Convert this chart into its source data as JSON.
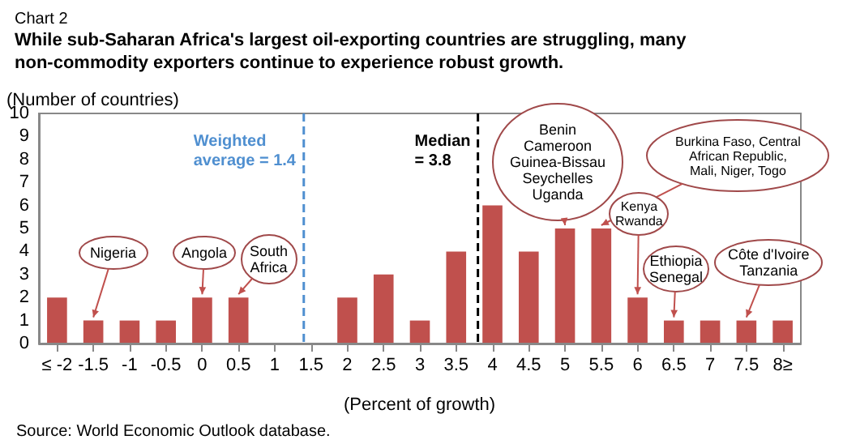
{
  "chart_data": {
    "type": "bar",
    "title": "Chart 2",
    "subtitle": "While sub-Saharan Africa's largest oil-exporting countries are struggling, many non-commodity exporters continue to experience robust growth.",
    "ylabel": "(Number of countries)",
    "xlabel": "(Percent of growth)",
    "x": [
      -2,
      -1.5,
      -1,
      -0.5,
      0,
      0.5,
      1,
      1.5,
      2,
      2.5,
      3,
      3.5,
      4,
      4.5,
      5,
      5.5,
      6,
      6.5,
      7,
      7.5,
      8
    ],
    "values": [
      2,
      1,
      1,
      1,
      2,
      2,
      0,
      0,
      2,
      3,
      1,
      4,
      6,
      4,
      5,
      5,
      2,
      1,
      1,
      1,
      1
    ],
    "color": "#c0504d",
    "xlim": [
      -2.25,
      8.25
    ],
    "xticks": [
      {
        "value": -2,
        "label": "≤ -2"
      },
      -1.5,
      -1,
      -0.5,
      0,
      0.5,
      1,
      1.5,
      2,
      2.5,
      3,
      3.5,
      4,
      4.5,
      5,
      5.5,
      6,
      6.5,
      7,
      7.5,
      {
        "value": 8,
        "label": "8≥"
      }
    ],
    "ylim": [
      0,
      10
    ],
    "yticks": [
      0,
      1,
      2,
      3,
      4,
      5,
      6,
      7,
      8,
      9,
      10
    ],
    "grid": false,
    "ref_lines": [
      {
        "axis": "x",
        "value": 1.4,
        "label": "Weighted\naverage = 1.4",
        "color": "#4f8fd0",
        "line_style": "dashed"
      },
      {
        "axis": "x",
        "value": 3.8,
        "label": "Median\n= 3.8",
        "color": "#000000",
        "line_style": "dashed"
      }
    ],
    "annotations": [
      {
        "text": "Nigeria",
        "x": -1.5,
        "y": 1
      },
      {
        "text": "Angola",
        "x": 0,
        "y": 2
      },
      {
        "text": "South\nAfrica",
        "x": 0.5,
        "y": 2
      },
      {
        "text": "Benin\nCameroon\nGuinea-Bissau\nSeychelles\nUganda",
        "x": 5,
        "y": 5
      },
      {
        "text": "Burkina Faso, Central\nAfrican Republic,\nMali, Niger, Togo",
        "x": 5.5,
        "y": 5
      },
      {
        "text": "Kenya\nRwanda",
        "x": 6,
        "y": 2
      },
      {
        "text": "Ethiopia\nSenegal",
        "x": 6.5,
        "y": 1
      },
      {
        "text": "Côte d'Ivoire\nTanzania",
        "x": 7.5,
        "y": 1
      },
      "Source: World Economic Outlook database."
    ]
  }
}
